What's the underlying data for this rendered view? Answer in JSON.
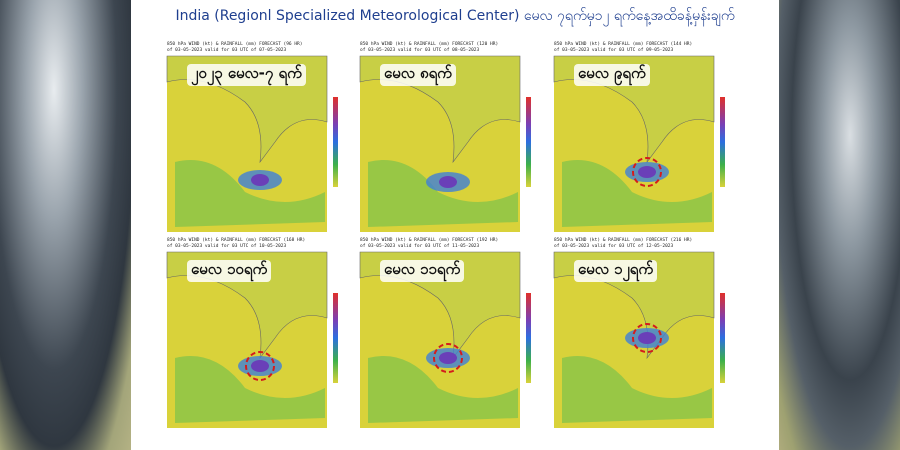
{
  "header": {
    "title": "India (Regionl Specialized Meteorological Center) မေလ ၇ရက်မှ၁၂ ရက်နေ့အထိခန့်မှန်းချက်"
  },
  "panels": [
    {
      "label": "၂၀၂၃ မေလ-၇ ရက်",
      "line1": "850 hPa WIND (kt) & RAINFALL (mm) FORECAST (96 HR)",
      "line2": "of 03-05-2023 valid for 03 UTC of 07-05-2023"
    },
    {
      "label": "မေလ ၈ရက်",
      "line1": "850 hPa WIND (kt) & RAINFALL (mm) FORECAST (120 HR)",
      "line2": "of 03-05-2023 valid for 03 UTC of 08-05-2023"
    },
    {
      "label": "မေလ ၉ရက်",
      "line1": "850 hPa WIND (kt) & RAINFALL (mm) FORECAST (144 HR)",
      "line2": "of 03-05-2023 valid for 03 UTC of 09-05-2023"
    },
    {
      "label": "မေလ ၁၀ရက်",
      "line1": "850 hPa WIND (kt) & RAINFALL (mm) FORECAST (168 HR)",
      "line2": "of 03-05-2023 valid for 03 UTC of 10-05-2023"
    },
    {
      "label": "မေလ ၁၁ရက်",
      "line1": "850 hPa WIND (kt) & RAINFALL (mm) FORECAST (192 HR)",
      "line2": "of 03-05-2023 valid for 03 UTC of 11-05-2023"
    },
    {
      "label": "မေလ ၁၂ရက်",
      "line1": "850 hPa WIND (kt) & RAINFALL (mm) FORECAST (216 HR)",
      "line2": "of 03-05-2023 valid for 03 UTC of 12-05-2023"
    }
  ]
}
